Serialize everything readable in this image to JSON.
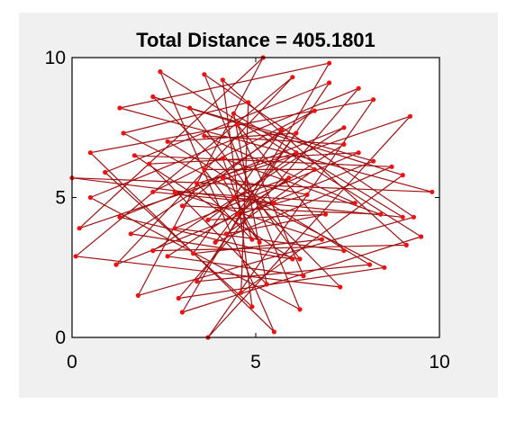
{
  "chart_data": {
    "type": "line",
    "title": "Total Distance = 405.1801",
    "xlabel": "",
    "ylabel": "",
    "xlim": [
      0,
      10
    ],
    "ylim": [
      0,
      10
    ],
    "x_ticks": [
      "0",
      "5",
      "10"
    ],
    "y_ticks": [
      "0",
      "5",
      "10"
    ],
    "grid": false,
    "legend": "none",
    "colors": {
      "points": "#ee1111",
      "path": "#a01010",
      "panel_background": "#f0f0f0",
      "axes_background": "#ffffff"
    },
    "points": [
      [
        0.0,
        5.7
      ],
      [
        9.8,
        5.2
      ],
      [
        1.3,
        8.2
      ],
      [
        7.0,
        9.8
      ],
      [
        3.0,
        0.9
      ],
      [
        9.5,
        3.6
      ],
      [
        2.4,
        9.5
      ],
      [
        5.5,
        0.2
      ],
      [
        0.5,
        6.6
      ],
      [
        8.2,
        8.5
      ],
      [
        3.7,
        0.0
      ],
      [
        9.2,
        7.9
      ],
      [
        0.2,
        3.9
      ],
      [
        5.2,
        10.0
      ],
      [
        1.8,
        1.5
      ],
      [
        9.3,
        4.3
      ],
      [
        3.6,
        9.4
      ],
      [
        6.2,
        1.0
      ],
      [
        0.5,
        5.0
      ],
      [
        7.8,
        8.9
      ],
      [
        2.9,
        1.4
      ],
      [
        8.5,
        2.5
      ],
      [
        1.4,
        7.3
      ],
      [
        4.8,
        8.4
      ],
      [
        4.6,
        1.6
      ],
      [
        9.0,
        5.8
      ],
      [
        2.2,
        8.6
      ],
      [
        7.3,
        1.8
      ],
      [
        0.1,
        2.9
      ],
      [
        6.0,
        9.3
      ],
      [
        1.2,
        2.6
      ],
      [
        8.2,
        6.3
      ],
      [
        3.2,
        8.2
      ],
      [
        6.2,
        2.8
      ],
      [
        1.3,
        4.3
      ],
      [
        7.4,
        7.5
      ],
      [
        2.2,
        3.1
      ],
      [
        9.1,
        3.3
      ],
      [
        4.1,
        9.2
      ],
      [
        4.9,
        1.1
      ],
      [
        0.9,
        5.9
      ],
      [
        7.0,
        9.1
      ],
      [
        3.4,
        2.0
      ],
      [
        8.1,
        2.6
      ],
      [
        2.6,
        7.0
      ],
      [
        6.1,
        7.3
      ],
      [
        3.9,
        3.4
      ],
      [
        8.7,
        6.1
      ],
      [
        1.7,
        6.5
      ],
      [
        6.0,
        2.8
      ],
      [
        1.6,
        3.7
      ],
      [
        6.6,
        8.1
      ],
      [
        2.2,
        5.2
      ],
      [
        9.0,
        4.3
      ],
      [
        4.4,
        8.0
      ],
      [
        5.3,
        1.9
      ],
      [
        2.1,
        6.2
      ],
      [
        7.8,
        6.6
      ],
      [
        2.8,
        3.9
      ],
      [
        7.4,
        3.1
      ],
      [
        4.5,
        7.6
      ],
      [
        6.3,
        2.2
      ],
      [
        2.6,
        2.9
      ],
      [
        7.4,
        6.9
      ],
      [
        3.6,
        7.2
      ],
      [
        7.7,
        4.8
      ],
      [
        2.8,
        5.2
      ],
      [
        6.8,
        3.5
      ],
      [
        3.3,
        3.0
      ],
      [
        5.7,
        7.4
      ],
      [
        3.0,
        4.7
      ],
      [
        8.4,
        4.4
      ],
      [
        4.1,
        6.4
      ],
      [
        4.9,
        3.5
      ],
      [
        3.4,
        5.5
      ],
      [
        6.1,
        6.6
      ],
      [
        3.7,
        4.2
      ],
      [
        6.9,
        4.4
      ],
      [
        4.2,
        3.7
      ],
      [
        6.6,
        6.0
      ],
      [
        3.6,
        6.0
      ],
      [
        5.1,
        3.4
      ],
      [
        4.1,
        5.7
      ],
      [
        6.4,
        5.1
      ],
      [
        4.5,
        4.4
      ],
      [
        5.9,
        5.7
      ],
      [
        4.4,
        5.0
      ],
      [
        5.5,
        4.8
      ]
    ]
  }
}
